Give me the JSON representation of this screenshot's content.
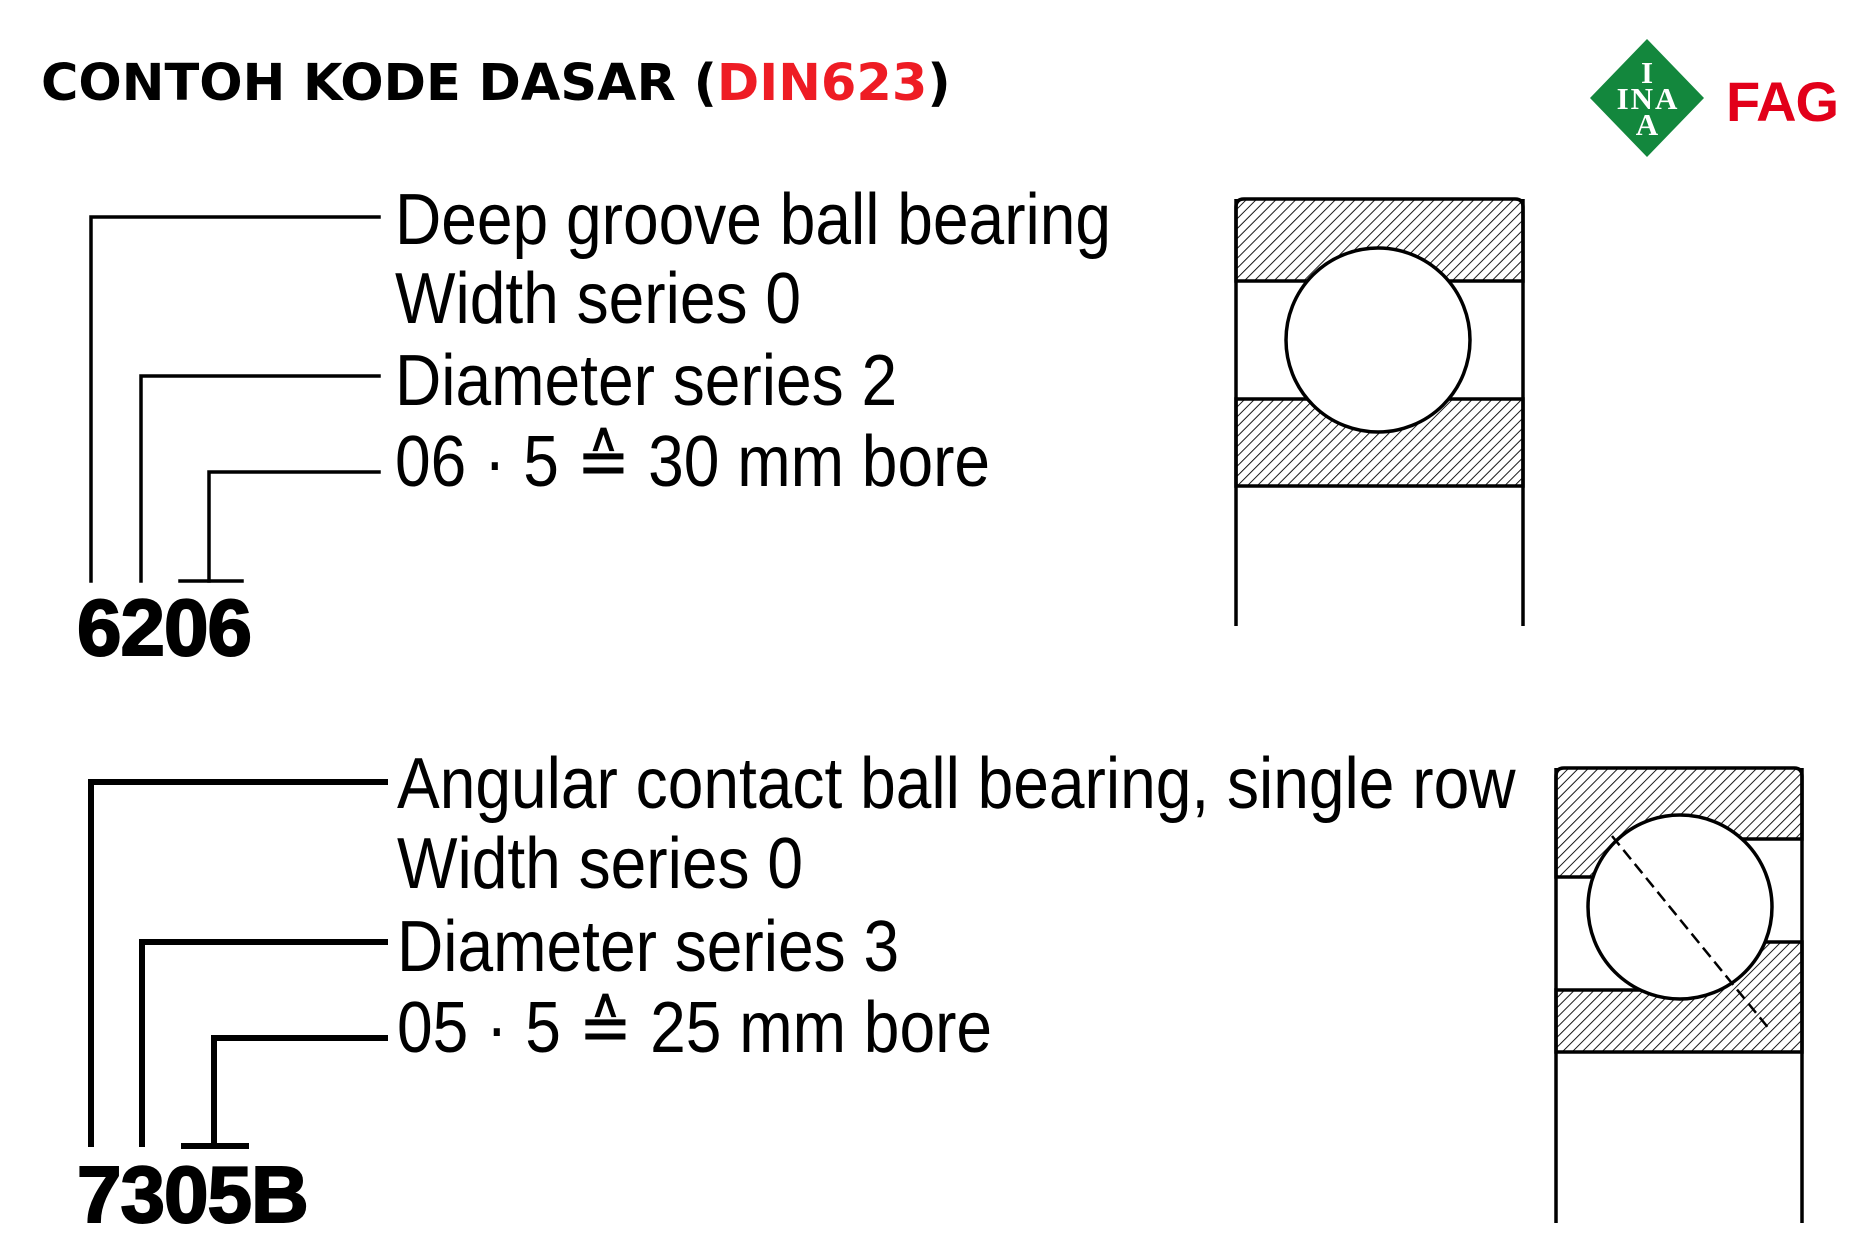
{
  "title": {
    "prefix": "CONTOH KODE DASAR (",
    "highlight": "DIN623",
    "suffix": ")"
  },
  "logos": {
    "ina": {
      "letter_top": "I",
      "letters_middle": "INA",
      "letter_bottom": "A"
    },
    "fag": {
      "text": "FAG"
    }
  },
  "colors": {
    "background": "#ffffff",
    "text": "#000000",
    "title_highlight": "#ee1c24",
    "ina_green": "#13873d",
    "fag_red": "#e2001a"
  },
  "examples": [
    {
      "code": "6206",
      "diagram_icon": "deep-groove-ball-bearing-cross-section",
      "description": {
        "bearing_type": "Deep groove ball bearing",
        "width_series": "Width series 0",
        "diameter_series": "Diameter series 2",
        "bore": "06 · 5 ≙ 30 mm bore"
      }
    },
    {
      "code": "7305B",
      "diagram_icon": "angular-contact-ball-bearing-cross-section",
      "description": {
        "bearing_type": "Angular contact ball bearing, single row",
        "width_series": "Width series 0",
        "diameter_series": "Diameter series 3",
        "bore": "05 · 5 ≙ 25 mm bore"
      }
    }
  ]
}
